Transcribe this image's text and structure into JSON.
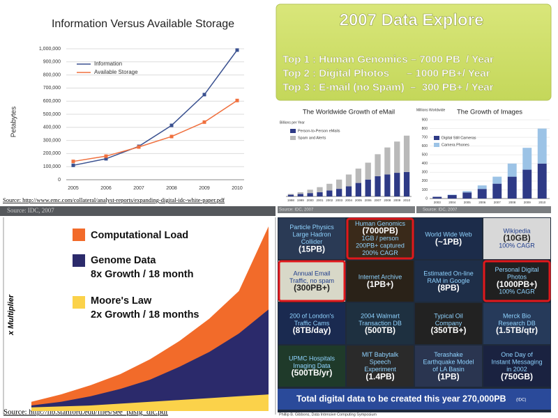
{
  "slide": {
    "title": "2007 Data Explore",
    "items": [
      "Top 1 : Human Genomics – 7000 PB  / Year",
      "Top 2 : Digital Photos      – 1000 PB+/ Year",
      "Top 3 : E-mail (no Spam)  –  300 PB+ / Year"
    ],
    "source_top": "Source: http://www.emc.com/collateral/analyst-reports/expanding-digital-idc-white-paper.pdf",
    "source_bottom": "Source: http://lib.stanford.edu/files/see_pasig_dic.pdf"
  },
  "chart_data": [
    {
      "type": "line",
      "title": "Information Versus Available Storage",
      "y_label": "Petabytes",
      "source": "Source: IDC, 2007",
      "categories": [
        "2005",
        "2006",
        "2007",
        "2008",
        "2009",
        "2010"
      ],
      "series": [
        {
          "name": "Information",
          "color": "#3a5190",
          "values": [
            110000,
            160000,
            255000,
            415000,
            650000,
            990000
          ]
        },
        {
          "name": "Available Storage",
          "color": "#f0703e",
          "values": [
            140000,
            180000,
            250000,
            330000,
            440000,
            605000
          ]
        }
      ],
      "ylim": [
        0,
        1000000
      ],
      "yticks": [
        0,
        {
          "value": 100000,
          "label": "100,000"
        },
        {
          "value": 200000,
          "label": "200,000"
        },
        {
          "value": 300000,
          "label": "300,000"
        },
        {
          "value": 400000,
          "label": "400,000"
        },
        {
          "value": 500000,
          "label": "500,000"
        },
        {
          "value": 600000,
          "label": "600,000"
        },
        {
          "value": 700000,
          "label": "700,000"
        },
        {
          "value": 800000,
          "label": "800,000"
        },
        {
          "value": 900000,
          "label": "900,000"
        },
        {
          "value": 1000000,
          "label": "1,000,000"
        }
      ],
      "grid": true
    },
    {
      "type": "stacked-bar",
      "title": "The Worldwide Growth of eMail",
      "y_label": "Billions per Year",
      "source": "Source: IDC, 2007",
      "categories": [
        "1998",
        "1999",
        "2000",
        "2001",
        "2002",
        "2003",
        "2004",
        "2005",
        "2006",
        "2007",
        "2008",
        "2009",
        "2010"
      ],
      "series": [
        {
          "name": "Person-to-Person eMails",
          "color": "#2e3a86",
          "values": [
            2,
            3,
            4,
            5,
            7,
            9,
            12,
            16,
            20,
            24,
            26,
            28,
            29
          ]
        },
        {
          "name": "Spam and Alerts",
          "color": "#b9b9b9",
          "values": [
            1,
            2,
            4,
            6,
            8,
            11,
            14,
            17,
            20,
            26,
            32,
            37,
            43
          ]
        }
      ],
      "ylim": [
        0,
        80
      ]
    },
    {
      "type": "stacked-bar",
      "title": "The Growth of Images",
      "y_label": "Millions Worldwide",
      "source": "Source: IDC, 2007",
      "categories": [
        "2003",
        "2004",
        "2005",
        "2006",
        "2007",
        "2008",
        "2009",
        "2010"
      ],
      "series": [
        {
          "name": "Digital Still Cameras",
          "color": "#2e3a86",
          "values": [
            20,
            40,
            70,
            110,
            170,
            250,
            330,
            400
          ]
        },
        {
          "name": "Camera Phones",
          "color": "#9cc3e6",
          "values": [
            0,
            5,
            15,
            40,
            80,
            150,
            250,
            400
          ]
        }
      ],
      "ylim": [
        0,
        900
      ],
      "yticks": [
        0,
        100,
        200,
        300,
        400,
        500,
        600,
        700,
        800,
        900
      ]
    },
    {
      "type": "area",
      "y_label": "x Multiplier",
      "series": [
        {
          "name": "Computational Load",
          "color": "#f26b2a",
          "values": [
            5,
            9,
            14,
            20,
            28,
            38,
            50,
            65,
            100
          ]
        },
        {
          "name": "Genome Data",
          "note": "8x Growth / 18 month",
          "color": "#2b2a6b",
          "values": [
            3,
            5,
            8,
            12,
            17,
            24,
            32,
            42,
            55
          ]
        },
        {
          "name": "Moore's Law",
          "note": "2x Growth / 18 months",
          "color": "#fbd24a",
          "values": [
            2,
            2.5,
            3,
            4,
            5,
            6,
            7,
            8,
            9
          ]
        }
      ],
      "ylim": [
        0,
        100
      ]
    }
  ],
  "tiles": [
    [
      "Particle Physics",
      "Large Hadron",
      "Collider",
      "(15PB)"
    ],
    [
      "Human Genomics",
      "(7000PB)",
      "1GB / person",
      "200PB+ captured",
      "200% CAGR"
    ],
    [
      "World Wide Web",
      "(~1PB)"
    ],
    [
      "Wikipedia",
      "(10GB)",
      "100% CAGR"
    ],
    [
      "Annual Email",
      "Traffic, no spam",
      "(300PB+)"
    ],
    [
      "Internet Archive",
      "(1PB+)"
    ],
    [
      "Estimated On-line",
      "RAM in Google",
      "(8PB)"
    ],
    [
      "Personal Digital",
      "Photos",
      "(1000PB+)",
      "100% CAGR"
    ],
    [
      "200 of London's",
      "Traffic Cams",
      "(8TB/day)"
    ],
    [
      "2004 Walmart",
      "Transaction DB",
      "(500TB)"
    ],
    [
      "Typical Oil",
      "Company",
      "(350TB+)"
    ],
    [
      "Merck Bio",
      "Research DB",
      "(1.5TB/qtr)"
    ],
    [
      "UPMC Hospitals",
      "Imaging Data",
      "(500TB/yr)"
    ],
    [
      "MIT Babytalk",
      "Speech",
      "Experiment",
      "(1.4PB)"
    ],
    [
      "Terashake",
      "Earthquake Model",
      "of LA Basin",
      "(1PB)"
    ],
    [
      "One Day of",
      "Instant Messaging",
      "in 2002",
      "(750GB)"
    ]
  ],
  "footer": {
    "text": "Total digital data to be created this year 270,000PB",
    "note": "(IDC)",
    "credit": "Phillip B. Gibbons, Data Intensive Computing Symposium"
  }
}
